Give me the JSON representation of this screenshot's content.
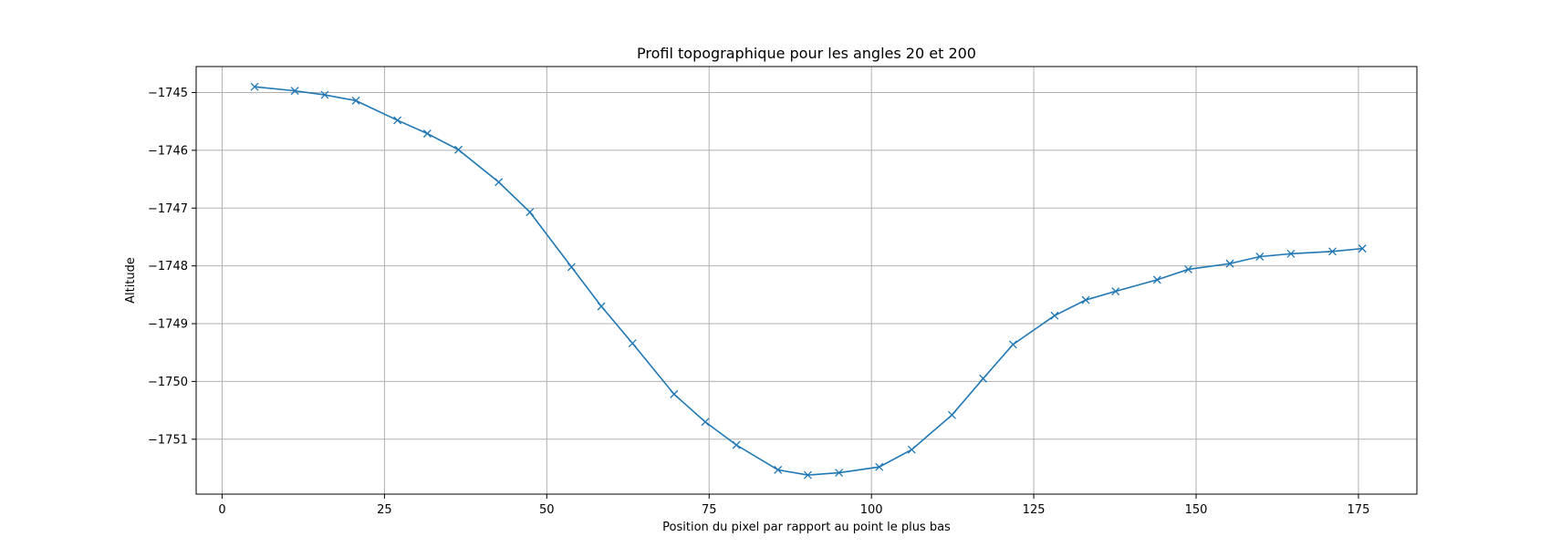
{
  "chart_data": {
    "type": "line",
    "title": "Profil topographique pour les angles 20 et 200",
    "xlabel": "Position du pixel par rapport au point le plus bas",
    "ylabel": "Altitude",
    "xlim": [
      -4,
      184
    ],
    "ylim": [
      -1751.95,
      -1744.55
    ],
    "xticks": [
      0,
      25,
      50,
      75,
      100,
      125,
      150,
      175
    ],
    "yticks": [
      -1745,
      -1746,
      -1747,
      -1748,
      -1749,
      -1750,
      -1751
    ],
    "xtick_labels": [
      "0",
      "25",
      "50",
      "75",
      "100",
      "125",
      "150",
      "175"
    ],
    "ytick_labels": [
      "−1745",
      "−1746",
      "−1747",
      "−1748",
      "−1749",
      "−1750",
      "−1751"
    ],
    "grid": true,
    "marker": "x",
    "color": "#1f77b4",
    "series": [
      {
        "x": [
          5,
          11.2,
          15.8,
          20.6,
          27,
          31.6,
          36.4,
          42.6,
          47.4,
          53.8,
          58.4,
          63.2,
          69.6,
          74.4,
          79.2,
          85.6,
          90.2,
          95,
          101.2,
          106.2,
          112.4,
          117.2,
          121.8,
          128.2,
          133,
          137.6,
          144,
          148.8,
          155.2,
          159.8,
          164.6,
          171,
          175.6
        ],
        "y": [
          -1744.9,
          -1744.97,
          -1745.04,
          -1745.14,
          -1745.48,
          -1745.71,
          -1745.99,
          -1746.55,
          -1747.07,
          -1748.02,
          -1748.7,
          -1749.34,
          -1750.22,
          -1750.7,
          -1751.1,
          -1751.53,
          -1751.62,
          -1751.58,
          -1751.48,
          -1751.18,
          -1750.58,
          -1749.95,
          -1749.36,
          -1748.86,
          -1748.59,
          -1748.44,
          -1748.24,
          -1748.06,
          -1747.96,
          -1747.84,
          -1747.79,
          -1747.75,
          -1747.7
        ]
      }
    ]
  }
}
